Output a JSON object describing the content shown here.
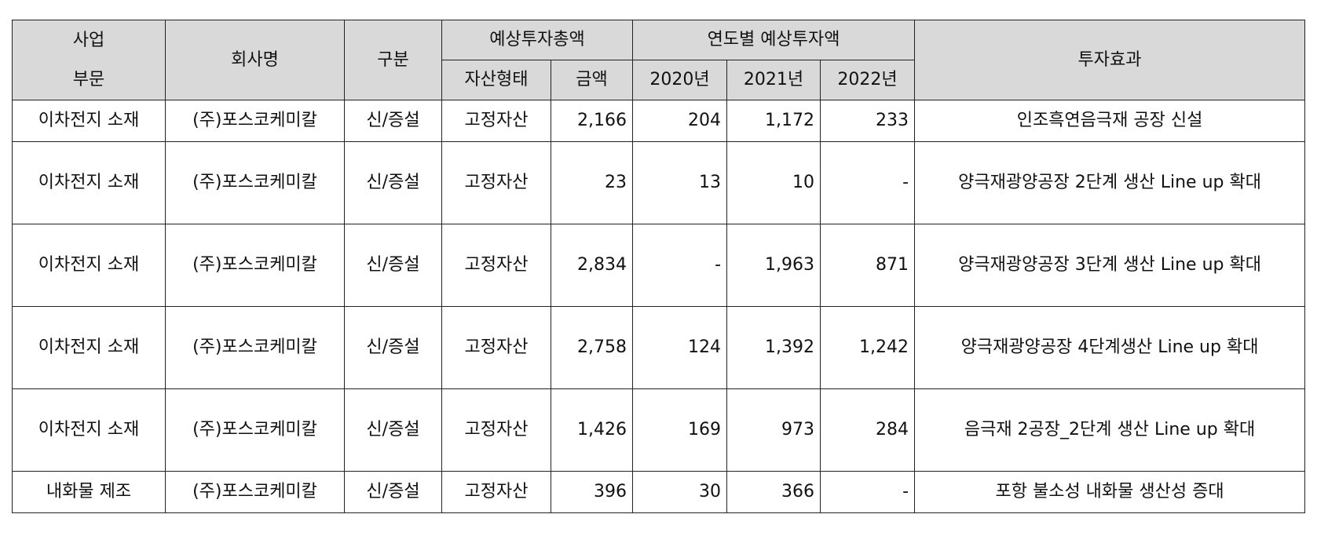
{
  "header": {
    "segment_line1": "사업",
    "segment_line2": "부문",
    "company": "회사명",
    "category": "구분",
    "total": "예상투자총액",
    "asset_type": "자산형태",
    "amount": "금액",
    "yearly": "연도별 예상투자액",
    "y2020": "2020년",
    "y2021": "2021년",
    "y2022": "2022년",
    "effect": "투자효과"
  },
  "rows": [
    {
      "segment": "이차전지 소재",
      "company": "(주)포스코케미칼",
      "category": "신/증설",
      "asset": "고정자산",
      "amount": "2,166",
      "y2020": "204",
      "y2021": "1,172",
      "y2022": "233",
      "effect": "인조흑연음극재 공장 신설"
    },
    {
      "segment": "이차전지 소재",
      "company": "(주)포스코케미칼",
      "category": "신/증설",
      "asset": "고정자산",
      "amount": "23",
      "y2020": "13",
      "y2021": "10",
      "y2022": "-",
      "effect": "양극재광양공장 2단계 생산 Line up 확대"
    },
    {
      "segment": "이차전지 소재",
      "company": "(주)포스코케미칼",
      "category": "신/증설",
      "asset": "고정자산",
      "amount": "2,834",
      "y2020": "-",
      "y2021": "1,963",
      "y2022": "871",
      "effect": "양극재광양공장 3단계 생산 Line up 확대"
    },
    {
      "segment": "이차전지 소재",
      "company": "(주)포스코케미칼",
      "category": "신/증설",
      "asset": "고정자산",
      "amount": "2,758",
      "y2020": "124",
      "y2021": "1,392",
      "y2022": "1,242",
      "effect": "양극재광양공장 4단계생산 Line up 확대"
    },
    {
      "segment": "이차전지 소재",
      "company": "(주)포스코케미칼",
      "category": "신/증설",
      "asset": "고정자산",
      "amount": "1,426",
      "y2020": "169",
      "y2021": "973",
      "y2022": "284",
      "effect": "음극재 2공장_2단계 생산 Line up 확대"
    },
    {
      "segment": "내화물 제조",
      "company": "(주)포스코케미칼",
      "category": "신/증설",
      "asset": "고정자산",
      "amount": "396",
      "y2020": "30",
      "y2021": "366",
      "y2022": "-",
      "effect": "포항 불소성 내화물 생산성 증대"
    }
  ]
}
